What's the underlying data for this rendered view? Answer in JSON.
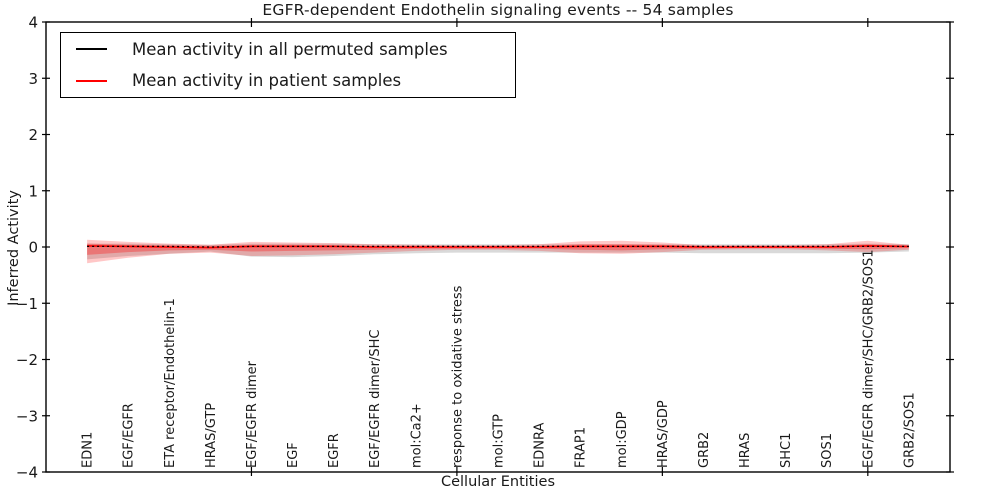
{
  "chart_data": {
    "type": "line",
    "title": "EGFR-dependent Endothelin signaling events -- 54 samples",
    "xlabel": "Cellular Entities",
    "ylabel": "Inferred Activity",
    "ylim": [
      -4,
      4
    ],
    "grid": false,
    "legend_position": "upper left",
    "yticks": [
      {
        "value": 4,
        "label": "4"
      },
      {
        "value": 3,
        "label": "3"
      },
      {
        "value": 2,
        "label": "2"
      },
      {
        "value": 1,
        "label": "1"
      },
      {
        "value": 0,
        "label": "0"
      },
      {
        "value": -1,
        "label": "−1"
      },
      {
        "value": -2,
        "label": "−2"
      },
      {
        "value": -3,
        "label": "−3"
      },
      {
        "value": -4,
        "label": "−4"
      }
    ],
    "xtick_units": [
      5,
      10,
      15,
      20
    ],
    "categories": [
      "EDN1",
      "EGF/EGFR",
      "ETA receptor/Endothelin-1",
      "HRAS/GTP",
      "EGF/EGFR dimer",
      "EGF",
      "EGFR",
      "EGF/EGFR dimer/SHC",
      "mol:Ca2+",
      "response to oxidative stress",
      "mol:GTP",
      "EDNRA",
      "FRAP1",
      "mol:GDP",
      "HRAS/GDP",
      "GRB2",
      "HRAS",
      "SHC1",
      "SOS1",
      "EGF/EGFR dimer/SHC/GRB2/SOS1",
      "GRB2/SOS1"
    ],
    "series": [
      {
        "name": "Mean activity in all permuted samples",
        "color": "#000000",
        "style": "dotted",
        "values": [
          0.01,
          0.01,
          0.01,
          0.0,
          0.01,
          0.01,
          0.01,
          0.01,
          0.01,
          0.01,
          0.01,
          0.01,
          0.01,
          0.01,
          0.01,
          0.01,
          0.01,
          0.01,
          0.01,
          0.01,
          0.01
        ]
      },
      {
        "name": "Mean activity in patient samples",
        "color": "#ff0000",
        "style": "solid",
        "values": [
          0.02,
          0.01,
          0.0,
          -0.01,
          0.01,
          0.01,
          0.01,
          0.0,
          0.0,
          0.0,
          0.0,
          0.0,
          0.01,
          0.01,
          0.01,
          0.0,
          0.0,
          0.0,
          0.0,
          0.02,
          0.01
        ]
      }
    ],
    "bands": [
      {
        "name": "permuted-range",
        "color": "rgba(130,130,130,0.30)",
        "upper": [
          0.06,
          0.06,
          0.05,
          0.04,
          0.06,
          0.06,
          0.06,
          0.05,
          0.05,
          0.05,
          0.05,
          0.05,
          0.05,
          0.05,
          0.05,
          0.05,
          0.05,
          0.05,
          0.05,
          0.06,
          0.05
        ],
        "lower": [
          -0.22,
          -0.16,
          -0.12,
          -0.08,
          -0.17,
          -0.18,
          -0.16,
          -0.13,
          -0.11,
          -0.1,
          -0.1,
          -0.1,
          -0.1,
          -0.1,
          -0.1,
          -0.11,
          -0.11,
          -0.11,
          -0.11,
          -0.1,
          -0.08
        ]
      },
      {
        "name": "patient-range",
        "color": "rgba(255,0,0,0.22)",
        "upper": [
          0.13,
          0.09,
          0.06,
          0.04,
          0.09,
          0.08,
          0.07,
          0.05,
          0.04,
          0.03,
          0.03,
          0.05,
          0.1,
          0.11,
          0.08,
          0.03,
          0.03,
          0.03,
          0.05,
          0.11,
          0.04
        ],
        "lower": [
          -0.29,
          -0.19,
          -0.12,
          -0.1,
          -0.16,
          -0.15,
          -0.13,
          -0.1,
          -0.07,
          -0.05,
          -0.05,
          -0.07,
          -0.11,
          -0.12,
          -0.09,
          -0.05,
          -0.04,
          -0.04,
          -0.06,
          -0.09,
          -0.05
        ]
      },
      {
        "name": "patient-inner-range",
        "color": "rgba(255,0,0,0.30)",
        "upper": [
          0.06,
          0.04,
          0.03,
          0.02,
          0.04,
          0.04,
          0.03,
          0.02,
          0.02,
          0.02,
          0.02,
          0.02,
          0.05,
          0.05,
          0.04,
          0.02,
          0.02,
          0.02,
          0.02,
          0.05,
          0.02
        ],
        "lower": [
          -0.14,
          -0.09,
          -0.06,
          -0.05,
          -0.08,
          -0.07,
          -0.06,
          -0.05,
          -0.03,
          -0.03,
          -0.03,
          -0.03,
          -0.05,
          -0.06,
          -0.04,
          -0.03,
          -0.02,
          -0.02,
          -0.03,
          -0.04,
          -0.02
        ]
      }
    ],
    "legend": {
      "entries": [
        {
          "label": "Mean activity in all permuted samples",
          "color": "#000000"
        },
        {
          "label": "Mean activity in patient samples",
          "color": "#ff0000"
        }
      ]
    }
  }
}
